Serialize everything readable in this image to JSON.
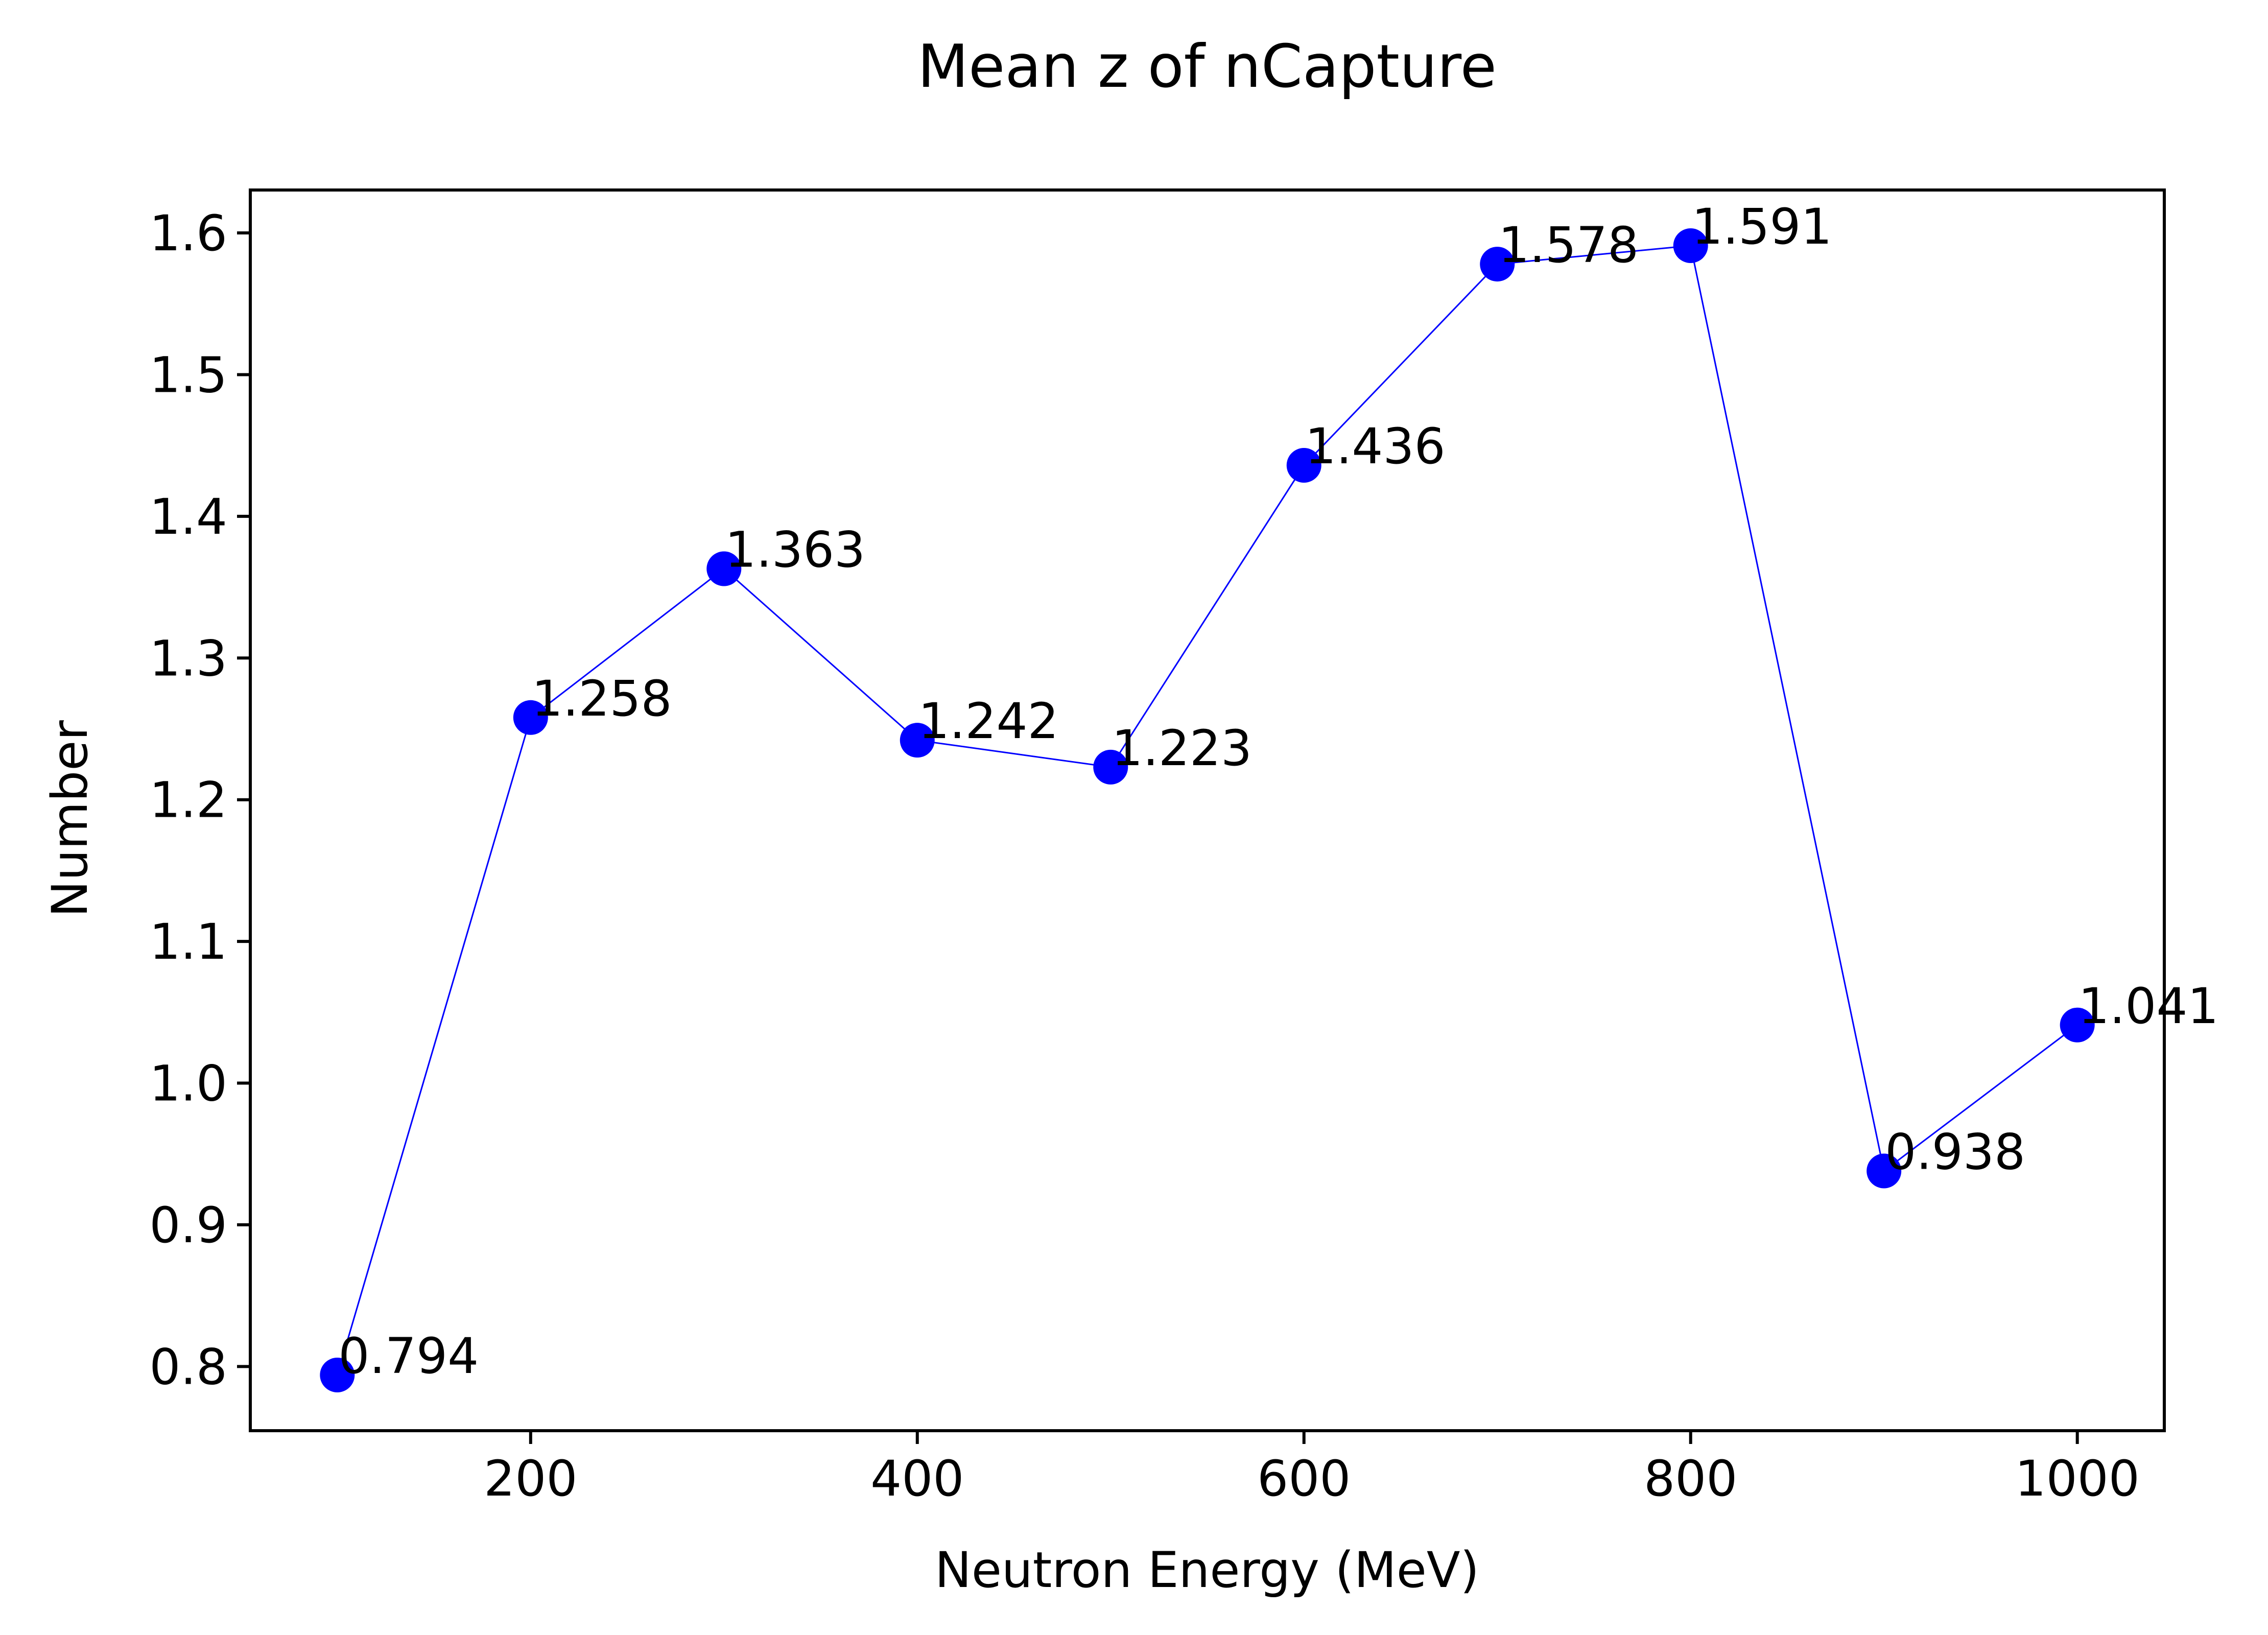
{
  "chart_data": {
    "type": "line",
    "title": "Mean z of nCapture",
    "xlabel": "Neutron Energy (MeV)",
    "ylabel": "Number",
    "x": [
      100,
      200,
      300,
      400,
      500,
      600,
      700,
      800,
      900,
      1000
    ],
    "series": [
      {
        "values": [
          0.794,
          1.258,
          1.363,
          1.242,
          1.223,
          1.436,
          1.578,
          1.591,
          0.938,
          1.041
        ],
        "labels": [
          "0.794",
          "1.258",
          "1.363",
          "1.242",
          "1.223",
          "1.436",
          "1.578",
          "1.591",
          "0.938",
          "1.041"
        ],
        "color": "#0000ff",
        "marker": "circle"
      }
    ],
    "xlim": [
      55,
      1045
    ],
    "ylim": [
      0.7547,
      1.6303
    ],
    "xticks": [
      200,
      400,
      600,
      800,
      1000
    ],
    "xtick_labels": [
      "200",
      "400",
      "600",
      "800",
      "1000"
    ],
    "yticks": [
      0.8,
      0.9,
      1.0,
      1.1,
      1.2,
      1.3,
      1.4,
      1.5,
      1.6
    ],
    "ytick_labels": [
      "0.8",
      "0.9",
      "1.0",
      "1.1",
      "1.2",
      "1.3",
      "1.4",
      "1.5",
      "1.6"
    ],
    "grid": false,
    "legend": "none"
  }
}
